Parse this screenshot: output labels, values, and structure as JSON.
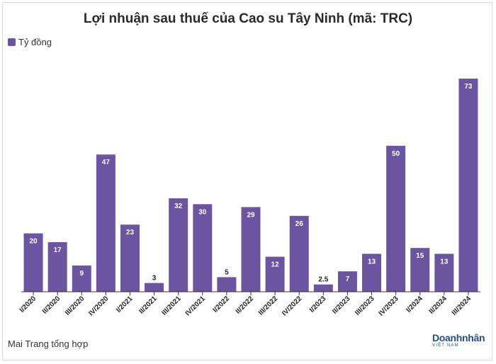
{
  "title": "Lợi nhuận sau thuế của Cao su Tây Ninh (mã: TRC)",
  "source": "Mai Trang tổng hợp",
  "brand": {
    "main": "Doanhnhân",
    "sub": "VIỆT NAM"
  },
  "colors": {
    "bar": "#6b54a0",
    "axis": "#333333",
    "brand": "#1f4e8c"
  },
  "chart_data": {
    "type": "bar",
    "categories": [
      "I/2020",
      "II/2020",
      "III/2020",
      "IV/2020",
      "I/2021",
      "II/2021",
      "III/2021",
      "IV/2021",
      "I/2022",
      "II/2022",
      "III/2022",
      "IV/2022",
      "I/2023",
      "II/2023",
      "III/2023",
      "IV/2023",
      "I/2024",
      "II/2024",
      "III/2024"
    ],
    "series": [
      {
        "name": "Tỷ đồng",
        "values": [
          20,
          17,
          9,
          47,
          23,
          3,
          32,
          30,
          5,
          29,
          12,
          26,
          2.5,
          7,
          13,
          50,
          15,
          13,
          73
        ],
        "labels": [
          "20",
          "17",
          "9",
          "47",
          "23",
          "3",
          "32",
          "30",
          "5",
          "29",
          "12",
          "26",
          "2.5",
          "7",
          "13",
          "50",
          "15",
          "13",
          "73"
        ]
      }
    ],
    "ylim": [
      0,
      73
    ],
    "grid": false,
    "legend": "top-left"
  }
}
